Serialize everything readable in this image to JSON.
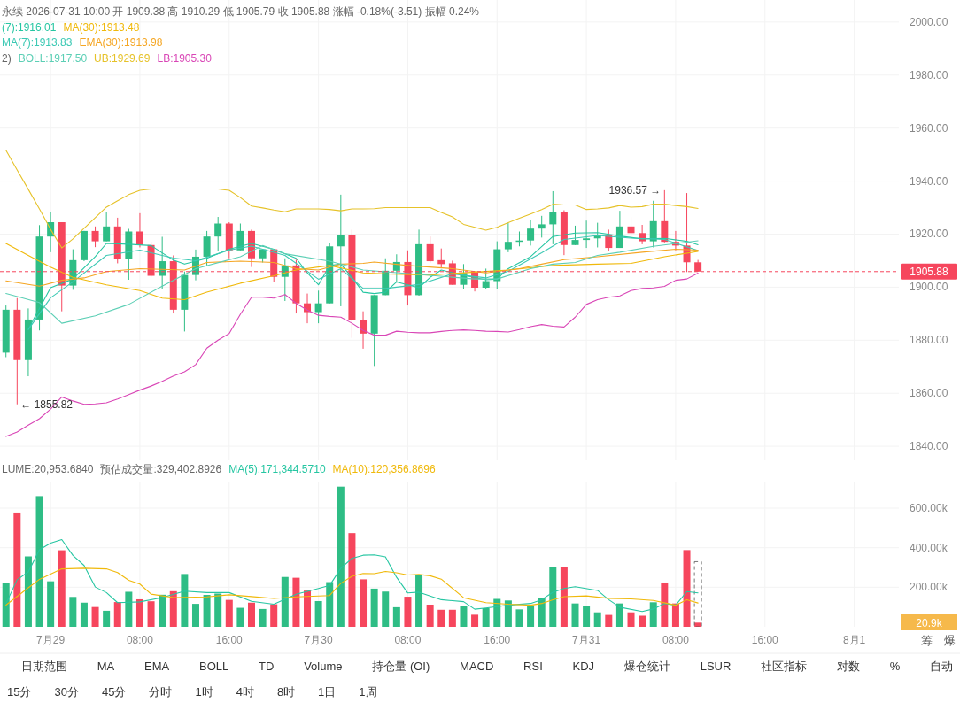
{
  "chart_data": [
    {
      "type": "candlestick",
      "grid": true,
      "legend": "top left",
      "tick_labels": "y",
      "x": [
        "2026-07-28T20:00",
        "2026-07-28T21:00",
        "2026-07-28T22:00",
        "2026-07-28T23:00",
        "2026-07-29T00:00",
        "2026-07-29T01:00",
        "2026-07-29T02:00",
        "2026-07-29T03:00",
        "2026-07-29T04:00",
        "2026-07-29T05:00",
        "2026-07-29T06:00",
        "2026-07-29T07:00",
        "2026-07-29T08:00",
        "2026-07-29T09:00",
        "2026-07-29T10:00",
        "2026-07-29T11:00",
        "2026-07-29T12:00",
        "2026-07-29T13:00",
        "2026-07-29T14:00",
        "2026-07-29T15:00",
        "2026-07-29T16:00",
        "2026-07-29T17:00",
        "2026-07-29T18:00",
        "2026-07-29T19:00",
        "2026-07-29T20:00",
        "2026-07-29T21:00",
        "2026-07-29T22:00",
        "2026-07-29T23:00",
        "2026-07-30T00:00",
        "2026-07-30T01:00",
        "2026-07-30T02:00",
        "2026-07-30T03:00",
        "2026-07-30T04:00",
        "2026-07-30T05:00",
        "2026-07-30T06:00",
        "2026-07-30T07:00",
        "2026-07-30T08:00",
        "2026-07-30T09:00",
        "2026-07-30T10:00",
        "2026-07-30T11:00",
        "2026-07-30T12:00",
        "2026-07-30T13:00",
        "2026-07-30T14:00",
        "2026-07-30T15:00",
        "2026-07-30T16:00",
        "2026-07-30T17:00",
        "2026-07-30T18:00",
        "2026-07-30T19:00",
        "2026-07-30T20:00",
        "2026-07-30T21:00",
        "2026-07-30T22:00",
        "2026-07-30T23:00",
        "2026-07-31T00:00",
        "2026-07-31T01:00",
        "2026-07-31T02:00",
        "2026-07-31T03:00",
        "2026-07-31T04:00",
        "2026-07-31T05:00",
        "2026-07-31T06:00",
        "2026-07-31T07:00",
        "2026-07-31T08:00",
        "2026-07-31T09:00",
        "2026-07-31T10:00"
      ],
      "ohlc": [
        [
          1875.3,
          1893.1,
          1873.6,
          1891.5
        ],
        [
          1891.5,
          1895.9,
          1855.82,
          1872.5
        ],
        [
          1872.5,
          1892.0,
          1866.4,
          1887.8
        ],
        [
          1887.8,
          1923.4,
          1883.7,
          1919.1
        ],
        [
          1919.1,
          1928.2,
          1913.2,
          1924.5
        ],
        [
          1924.5,
          1924.5,
          1890.9,
          1900.6
        ],
        [
          1900.6,
          1914.3,
          1899.0,
          1910.2
        ],
        [
          1910.2,
          1921.2,
          1909.8,
          1921.2
        ],
        [
          1921.2,
          1922.9,
          1915.1,
          1917.3
        ],
        [
          1917.3,
          1928.5,
          1917.3,
          1922.9
        ],
        [
          1922.9,
          1926.2,
          1909.0,
          1910.6
        ],
        [
          1910.6,
          1922.0,
          1902.8,
          1921.0
        ],
        [
          1921.0,
          1927.9,
          1915.0,
          1915.9
        ],
        [
          1915.9,
          1917.1,
          1903.9,
          1904.3
        ],
        [
          1904.3,
          1919.0,
          1899.2,
          1909.8
        ],
        [
          1909.8,
          1912.0,
          1890.1,
          1891.5
        ],
        [
          1891.5,
          1905.9,
          1883.3,
          1904.6
        ],
        [
          1904.6,
          1914.2,
          1902.6,
          1911.5
        ],
        [
          1911.5,
          1921.2,
          1908.2,
          1919.1
        ],
        [
          1919.1,
          1926.5,
          1913.7,
          1924.0
        ],
        [
          1924.0,
          1924.5,
          1910.9,
          1913.9
        ],
        [
          1913.9,
          1924.0,
          1913.9,
          1921.2
        ],
        [
          1921.2,
          1921.7,
          1907.6,
          1910.9
        ],
        [
          1910.9,
          1914.3,
          1909.3,
          1914.3
        ],
        [
          1914.3,
          1914.3,
          1902.0,
          1903.9
        ],
        [
          1903.9,
          1910.9,
          1894.8,
          1908.2
        ],
        [
          1908.2,
          1910.4,
          1890.1,
          1893.9
        ],
        [
          1893.9,
          1897.6,
          1886.4,
          1890.6
        ],
        [
          1890.6,
          1898.7,
          1886.4,
          1893.9
        ],
        [
          1893.9,
          1916.7,
          1893.9,
          1915.4
        ],
        [
          1915.4,
          1934.9,
          1892.8,
          1919.5
        ],
        [
          1919.5,
          1921.7,
          1880.9,
          1887.6
        ],
        [
          1887.6,
          1890.9,
          1876.8,
          1882.5
        ],
        [
          1882.5,
          1897.0,
          1870.3,
          1897.0
        ],
        [
          1897.0,
          1910.9,
          1897.0,
          1906.2
        ],
        [
          1906.2,
          1912.4,
          1902.0,
          1909.5
        ],
        [
          1909.5,
          1913.9,
          1893.1,
          1897.0
        ],
        [
          1897.0,
          1921.7,
          1896.8,
          1916.2
        ],
        [
          1916.2,
          1919.1,
          1909.3,
          1909.8
        ],
        [
          1910.2,
          1914.6,
          1907.1,
          1908.7
        ],
        [
          1909.0,
          1910.0,
          1900.9,
          1900.9
        ],
        [
          1900.9,
          1908.7,
          1899.2,
          1905.4
        ],
        [
          1905.7,
          1905.7,
          1898.4,
          1899.8
        ],
        [
          1899.8,
          1907.0,
          1899.2,
          1902.3
        ],
        [
          1902.3,
          1917.3,
          1899.2,
          1914.3
        ],
        [
          1914.3,
          1924.3,
          1913.2,
          1917.1
        ],
        [
          1917.1,
          1921.0,
          1915.4,
          1917.6
        ],
        [
          1917.6,
          1925.4,
          1915.7,
          1922.1
        ],
        [
          1922.1,
          1926.9,
          1918.7,
          1923.7
        ],
        [
          1923.7,
          1936.2,
          1916.2,
          1928.4
        ],
        [
          1928.4,
          1929.0,
          1912.1,
          1915.9
        ],
        [
          1915.9,
          1923.2,
          1915.9,
          1917.8
        ],
        [
          1917.8,
          1925.1,
          1914.8,
          1918.4
        ],
        [
          1918.4,
          1924.3,
          1915.0,
          1919.8
        ],
        [
          1919.8,
          1921.7,
          1913.7,
          1914.8
        ],
        [
          1914.8,
          1928.8,
          1914.8,
          1922.9
        ],
        [
          1922.9,
          1926.5,
          1918.7,
          1920.4
        ],
        [
          1920.4,
          1923.5,
          1916.2,
          1917.3
        ],
        [
          1917.3,
          1932.6,
          1915.0,
          1924.9
        ],
        [
          1924.9,
          1936.57,
          1916.9,
          1917.1
        ],
        [
          1917.1,
          1921.2,
          1913.9,
          1915.7
        ],
        [
          1915.7,
          1935.5,
          1905.7,
          1909.39
        ],
        [
          1909.38,
          1910.29,
          1905.79,
          1905.88
        ]
      ],
      "colors": [
        "#2ebd85",
        "#f6465d",
        "#2ebd85",
        "#2ebd85",
        "#2ebd85",
        "#f6465d",
        "#2ebd85",
        "#2ebd85",
        "#f6465d",
        "#2ebd85",
        "#f6465d",
        "#2ebd85",
        "#f6465d",
        "#f6465d",
        "#2ebd85",
        "#f6465d",
        "#2ebd85",
        "#2ebd85",
        "#2ebd85",
        "#2ebd85",
        "#f6465d",
        "#2ebd85",
        "#f6465d",
        "#2ebd85",
        "#f6465d",
        "#2ebd85",
        "#f6465d",
        "#f6465d",
        "#2ebd85",
        "#2ebd85",
        "#2ebd85",
        "#f6465d",
        "#f6465d",
        "#2ebd85",
        "#2ebd85",
        "#2ebd85",
        "#f6465d",
        "#2ebd85",
        "#f6465d",
        "#f6465d",
        "#f6465d",
        "#2ebd85",
        "#f6465d",
        "#2ebd85",
        "#2ebd85",
        "#2ebd85",
        "#2ebd85",
        "#2ebd85",
        "#2ebd85",
        "#2ebd85",
        "#f6465d",
        "#2ebd85",
        "#2ebd85",
        "#2ebd85",
        "#f6465d",
        "#2ebd85",
        "#f6465d",
        "#f6465d",
        "#2ebd85",
        "#f6465d",
        "#f6465d",
        "#f6465d",
        "#f6465d"
      ],
      "series": [
        {
          "type": "line",
          "name": "(7):1916.01",
          "color": "#26c6a2",
          "x": [
            "2026-07-28T22:00",
            "2026-07-29T00:00",
            "2026-07-29T02:00",
            "2026-07-29T04:00",
            "2026-07-29T05:00",
            "2026-07-29T07:00",
            "2026-07-29T09:00",
            "2026-07-29T11:00",
            "2026-07-29T12:00",
            "2026-07-29T14:00",
            "2026-07-29T16:00",
            "2026-07-29T18:00",
            "2026-07-29T20:00",
            "2026-07-29T22:00",
            "2026-07-29T23:00",
            "2026-07-30T00:00",
            "2026-07-30T01:00",
            "2026-07-30T02:00",
            "2026-07-30T03:00",
            "2026-07-30T04:00",
            "2026-07-30T05:00",
            "2026-07-30T06:00",
            "2026-07-30T07:00",
            "2026-07-30T08:00",
            "2026-07-30T09:00",
            "2026-07-30T10:00",
            "2026-07-30T11:00",
            "2026-07-30T13:00",
            "2026-07-30T15:00",
            "2026-07-30T16:00",
            "2026-07-30T17:00",
            "2026-07-30T19:00",
            "2026-07-30T21:00",
            "2026-07-30T23:00",
            "2026-07-31T01:00",
            "2026-07-31T03:00",
            "2026-07-31T05:00",
            "2026-07-31T07:00",
            "2026-07-31T09:00",
            "2026-07-31T10:00"
          ],
          "values": [
            1884.2,
            1899.8,
            1903.1,
            1911.5,
            1916.5,
            1916.2,
            1915.7,
            1910.2,
            1908.7,
            1910.9,
            1914.3,
            1916.5,
            1914.3,
            1910.9,
            1905.4,
            1900.9,
            1908.2,
            1908.7,
            1903.7,
            1898.1,
            1897.6,
            1898.1,
            1902.0,
            1900.9,
            1899.8,
            1903.7,
            1906.5,
            1904.5,
            1902.8,
            1903.1,
            1907.0,
            1911.5,
            1919.1,
            1920.4,
            1920.6,
            1919.3,
            1918.2,
            1918.4,
            1917.3,
            1916.01
          ]
        },
        {
          "type": "line",
          "name": "MA(30):1913.48",
          "color": "#f0b90b",
          "x": [
            "2026-07-28T20:00",
            "2026-07-28T22:00",
            "2026-07-29T00:00",
            "2026-07-29T02:00",
            "2026-07-29T05:00",
            "2026-07-29T08:00",
            "2026-07-29T10:00",
            "2026-07-29T12:00",
            "2026-07-29T14:00",
            "2026-07-29T17:00",
            "2026-07-29T20:00",
            "2026-07-29T22:00",
            "2026-07-30T01:00",
            "2026-07-30T04:00",
            "2026-07-30T06:00",
            "2026-07-30T10:00",
            "2026-07-30T14:00",
            "2026-07-30T17:00",
            "2026-07-30T21:00",
            "2026-07-31T01:00",
            "2026-07-31T04:00",
            "2026-07-31T07:00",
            "2026-07-31T10:00"
          ],
          "values": [
            1916.5,
            1912.0,
            1907.6,
            1903.7,
            1900.9,
            1898.7,
            1895.9,
            1895.3,
            1898.1,
            1901.5,
            1904.3,
            1906.5,
            1908.2,
            1905.4,
            1905.0,
            1904.6,
            1905.7,
            1906.5,
            1908.2,
            1908.7,
            1909.0,
            1911.5,
            1913.48
          ]
        },
        {
          "type": "line",
          "name": "MA(7):1913.83",
          "color": "#3cc9b4",
          "x": [
            "2026-07-28T22:00",
            "2026-07-29T00:00",
            "2026-07-29T02:00",
            "2026-07-29T05:00",
            "2026-07-29T08:00",
            "2026-07-29T11:00",
            "2026-07-29T13:00",
            "2026-07-29T16:00",
            "2026-07-29T18:00",
            "2026-07-29T21:00",
            "2026-07-30T00:00",
            "2026-07-30T02:00",
            "2026-07-30T04:00",
            "2026-07-30T06:00",
            "2026-07-30T09:00",
            "2026-07-30T12:00",
            "2026-07-30T15:00",
            "2026-07-30T17:00",
            "2026-07-30T20:00",
            "2026-07-30T22:00",
            "2026-07-31T01:00",
            "2026-07-31T04:00",
            "2026-07-31T07:00",
            "2026-07-31T10:00"
          ],
          "values": [
            1884.0,
            1896.0,
            1902.0,
            1912.0,
            1914.0,
            1911.0,
            1910.0,
            1914.0,
            1915.5,
            1912.0,
            1903.0,
            1907.0,
            1899.5,
            1899.5,
            1901.0,
            1905.0,
            1903.5,
            1906.0,
            1913.0,
            1918.0,
            1919.5,
            1918.5,
            1918.0,
            1913.83
          ]
        },
        {
          "type": "line",
          "name": "EMA(30):1913.98",
          "color": "#f5a623",
          "x": [
            "2026-07-28T20:00",
            "2026-07-28T23:00",
            "2026-07-29T01:00",
            "2026-07-29T03:00",
            "2026-07-29T05:00",
            "2026-07-29T08:00",
            "2026-07-29T12:00",
            "2026-07-29T14:00",
            "2026-07-29T17:00",
            "2026-07-29T20:00",
            "2026-07-29T22:00",
            "2026-07-30T00:00",
            "2026-07-30T02:00",
            "2026-07-30T04:00",
            "2026-07-30T05:00",
            "2026-07-30T08:00",
            "2026-07-30T12:00",
            "2026-07-30T15:00",
            "2026-07-30T18:00",
            "2026-07-30T20:00",
            "2026-07-30T22:00",
            "2026-07-31T01:00",
            "2026-07-31T05:00",
            "2026-07-31T08:00",
            "2026-07-31T10:00"
          ],
          "values": [
            1902.4,
            1900.4,
            1902.6,
            1903.5,
            1905.9,
            1907.0,
            1906.5,
            1909.3,
            1909.8,
            1909.3,
            1907.0,
            1906.5,
            1908.7,
            1909.0,
            1909.5,
            1908.2,
            1907.0,
            1905.4,
            1907.0,
            1908.7,
            1910.4,
            1911.5,
            1913.2,
            1914.3,
            1913.98
          ]
        },
        {
          "type": "line",
          "name": "BOLL:1917.50",
          "color": "#5ccfb5",
          "x": [
            "2026-07-28T20:00",
            "2026-07-28T23:00",
            "2026-07-29T01:00",
            "2026-07-29T04:00",
            "2026-07-29T07:00",
            "2026-07-29T10:00",
            "2026-07-29T13:00",
            "2026-07-29T17:00",
            "2026-07-29T19:00",
            "2026-07-29T21:00",
            "2026-07-30T01:00",
            "2026-07-30T04:00",
            "2026-07-30T09:00",
            "2026-07-30T14:00",
            "2026-07-30T16:00",
            "2026-07-30T19:00",
            "2026-07-30T21:00",
            "2026-07-30T23:00",
            "2026-07-31T01:00",
            "2026-07-31T03:00",
            "2026-07-31T06:00",
            "2026-07-31T10:00"
          ],
          "values": [
            1897.6,
            1894.2,
            1886.4,
            1889.2,
            1893.5,
            1900.4,
            1907.0,
            1911.5,
            1915.7,
            1912.6,
            1909.8,
            1906.5,
            1904.8,
            1903.1,
            1903.1,
            1907.0,
            1908.7,
            1909.3,
            1912.0,
            1913.2,
            1915.4,
            1917.5
          ]
        },
        {
          "type": "line",
          "name": "UB:1929.69",
          "color": "#e6c229",
          "values": [
            1951.6,
            1944.2,
            1936.9,
            1929.5,
            1921.8,
            1914.8,
            1918.2,
            1922.2,
            1926.2,
            1930.2,
            1932.6,
            1934.9,
            1936.5,
            1937.0,
            1937.0,
            1937.0,
            1937.0,
            1937.0,
            1937.0,
            1937.0,
            1936.5,
            1933.8,
            1930.6,
            1929.9,
            1929.1,
            1928.4,
            1929.5,
            1929.5,
            1929.5,
            1929.3,
            1928.8,
            1929.5,
            1929.5,
            1929.6,
            1930.0,
            1930.0,
            1930.0,
            1930.0,
            1930.0,
            1928.2,
            1926.5,
            1923.7,
            1922.6,
            1921.5,
            1922.6,
            1924.3,
            1926.0,
            1927.6,
            1929.3,
            1931.3,
            1931.0,
            1931.0,
            1929.3,
            1929.5,
            1929.9,
            1930.8,
            1930.2,
            1930.4,
            1931.3,
            1931.3,
            1930.8,
            1930.4,
            1929.69
          ]
        },
        {
          "type": "line",
          "name": "LB:1905.30",
          "color": "#d946b6",
          "values": [
            1843.7,
            1845.4,
            1848.0,
            1850.4,
            1854.0,
            1858.6,
            1857.1,
            1855.8,
            1856.0,
            1856.4,
            1857.8,
            1859.5,
            1861.2,
            1862.7,
            1864.5,
            1866.5,
            1868.1,
            1870.8,
            1877.0,
            1880.0,
            1882.5,
            1889.8,
            1896.2,
            1896.2,
            1895.9,
            1897.2,
            1893.9,
            1891.4,
            1889.4,
            1889.0,
            1888.7,
            1886.4,
            1883.7,
            1881.9,
            1881.9,
            1883.4,
            1883.0,
            1882.8,
            1882.8,
            1883.3,
            1883.7,
            1883.9,
            1883.7,
            1883.4,
            1883.3,
            1883.1,
            1884.0,
            1885.1,
            1885.9,
            1885.3,
            1885.0,
            1888.7,
            1893.5,
            1895.3,
            1896.2,
            1896.7,
            1898.7,
            1899.5,
            1899.7,
            1900.3,
            1902.6,
            1903.1,
            1905.3
          ]
        }
      ],
      "xlim": [
        "2026-07-28T19:28",
        "2026-08-01T04:00"
      ],
      "xticks": [
        {
          "value": "2026-07-29",
          "label": null
        },
        {
          "value": "2026-07-29T08:00",
          "label": null
        },
        {
          "value": "2026-07-29T16:00",
          "label": null
        },
        {
          "value": "2026-07-30",
          "label": null
        },
        {
          "value": "2026-07-30T08:00",
          "label": null
        },
        {
          "value": "2026-07-30T16:00",
          "label": null
        },
        {
          "value": "2026-07-31",
          "label": null
        },
        {
          "value": "2026-07-31T08:00",
          "label": null
        },
        {
          "value": "2026-07-31T16:00",
          "label": null
        },
        {
          "value": "2026-08-01",
          "label": null
        }
      ],
      "ylim": [
        1834.7,
        2008.3
      ],
      "yticks": [
        {
          "value": 1840,
          "label": "1840.00"
        },
        {
          "value": 1860,
          "label": "1860.00"
        },
        {
          "value": 1880,
          "label": "1880.00"
        },
        {
          "value": 1900,
          "label": "1900.00"
        },
        {
          "value": 1920,
          "label": "1920.00"
        },
        {
          "value": 1940,
          "label": "1940.00"
        },
        {
          "value": 1960,
          "label": "1960.00"
        },
        {
          "value": 1980,
          "label": "1980.00"
        },
        {
          "value": 2000,
          "label": "2000.00"
        }
      ],
      "ref_lines": [
        {
          "axis": "y",
          "value": 1905.88,
          "label": "1905.88",
          "color": "#f6465d",
          "line_style": "dashed"
        }
      ],
      "annotations": [
        "永续 2026-07-31 10:00 开 1909.38 高 1910.29 低 1905.79 收 1905.88 涨幅 -0.18%(-3.51) 振幅 0.24%",
        "2)",
        {
          "text": "1936.57 →",
          "x": "2026-07-31T07:00",
          "y": 1936.57
        },
        {
          "text": "← 1855.82",
          "x": "2026-07-28T21:00",
          "y": 1855.82
        }
      ]
    },
    {
      "type": "bar",
      "grid": true,
      "legend": "top left",
      "x": [
        "2026-07-28T20:00",
        "2026-07-28T21:00",
        "2026-07-28T22:00",
        "2026-07-28T23:00",
        "2026-07-29T00:00",
        "2026-07-29T01:00",
        "2026-07-29T02:00",
        "2026-07-29T03:00",
        "2026-07-29T04:00",
        "2026-07-29T05:00",
        "2026-07-29T06:00",
        "2026-07-29T07:00",
        "2026-07-29T08:00",
        "2026-07-29T09:00",
        "2026-07-29T10:00",
        "2026-07-29T11:00",
        "2026-07-29T12:00",
        "2026-07-29T13:00",
        "2026-07-29T14:00",
        "2026-07-29T15:00",
        "2026-07-29T16:00",
        "2026-07-29T17:00",
        "2026-07-29T18:00",
        "2026-07-29T19:00",
        "2026-07-29T20:00",
        "2026-07-29T21:00",
        "2026-07-29T22:00",
        "2026-07-29T23:00",
        "2026-07-30T00:00",
        "2026-07-30T01:00",
        "2026-07-30T02:00",
        "2026-07-30T03:00",
        "2026-07-30T04:00",
        "2026-07-30T05:00",
        "2026-07-30T06:00",
        "2026-07-30T07:00",
        "2026-07-30T08:00",
        "2026-07-30T09:00",
        "2026-07-30T10:00",
        "2026-07-30T11:00",
        "2026-07-30T12:00",
        "2026-07-30T13:00",
        "2026-07-30T14:00",
        "2026-07-30T15:00",
        "2026-07-30T16:00",
        "2026-07-30T17:00",
        "2026-07-30T18:00",
        "2026-07-30T19:00",
        "2026-07-30T20:00",
        "2026-07-30T21:00",
        "2026-07-30T22:00",
        "2026-07-30T23:00",
        "2026-07-31T00:00",
        "2026-07-31T01:00",
        "2026-07-31T02:00",
        "2026-07-31T03:00",
        "2026-07-31T04:00",
        "2026-07-31T05:00",
        "2026-07-31T06:00",
        "2026-07-31T07:00",
        "2026-07-31T08:00",
        "2026-07-31T09:00",
        "2026-07-31T10:00"
      ],
      "series": [
        {
          "type": "bar",
          "values": [
            223000,
            578000,
            356000,
            661000,
            230000,
            387000,
            151000,
            122000,
            100000,
            81000,
            125000,
            177000,
            139000,
            129000,
            162000,
            180000,
            267000,
            116000,
            161000,
            168000,
            136000,
            96000,
            122000,
            90000,
            114000,
            252000,
            248000,
            183000,
            130000,
            226000,
            709000,
            474000,
            240000,
            193000,
            178000,
            99000,
            152000,
            260000,
            112000,
            86000,
            86000,
            106000,
            61000,
            94000,
            141000,
            133000,
            88000,
            109000,
            147000,
            303000,
            303000,
            118000,
            106000,
            73000,
            60000,
            118000,
            73000,
            56000,
            124000,
            224000,
            118000,
            388000,
            20953.684
          ],
          "colors": [
            "#2ebd85",
            "#f6465d",
            "#2ebd85",
            "#2ebd85",
            "#2ebd85",
            "#f6465d",
            "#2ebd85",
            "#2ebd85",
            "#f6465d",
            "#2ebd85",
            "#f6465d",
            "#2ebd85",
            "#f6465d",
            "#f6465d",
            "#2ebd85",
            "#f6465d",
            "#2ebd85",
            "#2ebd85",
            "#2ebd85",
            "#2ebd85",
            "#f6465d",
            "#2ebd85",
            "#f6465d",
            "#2ebd85",
            "#f6465d",
            "#2ebd85",
            "#f6465d",
            "#f6465d",
            "#2ebd85",
            "#2ebd85",
            "#2ebd85",
            "#f6465d",
            "#f6465d",
            "#2ebd85",
            "#2ebd85",
            "#2ebd85",
            "#f6465d",
            "#2ebd85",
            "#f6465d",
            "#f6465d",
            "#f6465d",
            "#2ebd85",
            "#f6465d",
            "#2ebd85",
            "#2ebd85",
            "#2ebd85",
            "#2ebd85",
            "#2ebd85",
            "#2ebd85",
            "#2ebd85",
            "#f6465d",
            "#2ebd85",
            "#2ebd85",
            "#2ebd85",
            "#f6465d",
            "#2ebd85",
            "#f6465d",
            "#f6465d",
            "#2ebd85",
            "#f6465d",
            "#f6465d",
            "#f6465d",
            "#f6465d"
          ]
        },
        {
          "type": "bar",
          "color": "#555555",
          "line_style": "dashed",
          "values": [
            null,
            null,
            null,
            null,
            null,
            null,
            null,
            null,
            null,
            null,
            null,
            null,
            null,
            null,
            null,
            null,
            null,
            null,
            null,
            null,
            null,
            null,
            null,
            null,
            null,
            null,
            null,
            null,
            null,
            null,
            null,
            null,
            null,
            null,
            null,
            null,
            null,
            null,
            null,
            null,
            null,
            null,
            null,
            null,
            null,
            null,
            null,
            null,
            null,
            null,
            null,
            null,
            null,
            null,
            null,
            null,
            null,
            null,
            null,
            null,
            null,
            null,
            329402.8926
          ]
        },
        {
          "type": "line",
          "name": "MA(5):171,344.5710",
          "color": "#26c6a2",
          "x": [
            "2026-07-28T20:00",
            "2026-07-28T21:00",
            "2026-07-28T22:00",
            "2026-07-28T23:00",
            "2026-07-29T00:00",
            "2026-07-29T01:00",
            "2026-07-29T02:00",
            "2026-07-29T03:00",
            "2026-07-29T04:00",
            "2026-07-29T05:00",
            "2026-07-29T06:00",
            "2026-07-29T08:00",
            "2026-07-29T10:00",
            "2026-07-29T12:00",
            "2026-07-29T14:00",
            "2026-07-29T16:00",
            "2026-07-29T18:00",
            "2026-07-29T20:00",
            "2026-07-29T22:00",
            "2026-07-30T00:00",
            "2026-07-30T01:00",
            "2026-07-30T02:00",
            "2026-07-30T03:00",
            "2026-07-30T04:00",
            "2026-07-30T05:00",
            "2026-07-30T06:00",
            "2026-07-30T07:00",
            "2026-07-30T08:00",
            "2026-07-30T09:00",
            "2026-07-30T11:00",
            "2026-07-30T13:00",
            "2026-07-30T14:00",
            "2026-07-30T15:00",
            "2026-07-30T17:00",
            "2026-07-30T19:00",
            "2026-07-30T20:00",
            "2026-07-30T21:00",
            "2026-07-30T22:00",
            "2026-07-30T23:00",
            "2026-07-31T01:00",
            "2026-07-31T02:00",
            "2026-07-31T03:00",
            "2026-07-31T05:00",
            "2026-07-31T06:00",
            "2026-07-31T07:00",
            "2026-07-31T08:00",
            "2026-07-31T09:00",
            "2026-07-31T10:00"
          ],
          "values": [
            117000,
            238000,
            278000,
            390000,
            423000,
            441000,
            361000,
            310000,
            201000,
            173000,
            122000,
            126000,
            148000,
            180000,
            173000,
            173000,
            129000,
            114000,
            165000,
            194000,
            209000,
            296000,
            346000,
            362000,
            364000,
            354000,
            250000,
            171000,
            175000,
            137000,
            127000,
            89000,
            95000,
            109000,
            118000,
            137000,
            175000,
            194000,
            203000,
            184000,
            137000,
            99000,
            77000,
            90000,
            118000,
            109000,
            178000,
            171344.571
          ]
        },
        {
          "type": "line",
          "name": "MA(10):120,356.8696",
          "color": "#f0b90b",
          "x": [
            "2026-07-28T20:00",
            "2026-07-28T22:00",
            "2026-07-28T23:00",
            "2026-07-29T01:00",
            "2026-07-29T03:00",
            "2026-07-29T05:00",
            "2026-07-29T06:00",
            "2026-07-29T07:00",
            "2026-07-29T08:00",
            "2026-07-29T09:00",
            "2026-07-29T11:00",
            "2026-07-29T14:00",
            "2026-07-29T16:00",
            "2026-07-29T18:00",
            "2026-07-29T20:00",
            "2026-07-29T22:00",
            "2026-07-30T01:00",
            "2026-07-30T02:00",
            "2026-07-30T03:00",
            "2026-07-30T04:00",
            "2026-07-30T05:00",
            "2026-07-30T06:00",
            "2026-07-30T07:00",
            "2026-07-30T08:00",
            "2026-07-30T09:00",
            "2026-07-30T10:00",
            "2026-07-30T11:00",
            "2026-07-30T13:00",
            "2026-07-30T15:00",
            "2026-07-30T17:00",
            "2026-07-30T19:00",
            "2026-07-30T20:00",
            "2026-07-30T21:00",
            "2026-07-30T22:00",
            "2026-07-31T00:00",
            "2026-07-31T02:00",
            "2026-07-31T04:00",
            "2026-07-31T06:00",
            "2026-07-31T08:00",
            "2026-07-31T09:00",
            "2026-07-31T10:00"
          ],
          "values": [
            110000,
            197000,
            240000,
            293000,
            296000,
            293000,
            274000,
            235000,
            216000,
            165000,
            148000,
            151000,
            162000,
            153000,
            143000,
            151000,
            158000,
            220000,
            255000,
            270000,
            269000,
            280000,
            273000,
            262000,
            265000,
            258000,
            241000,
            147000,
            122000,
            114000,
            109000,
            118000,
            137000,
            152000,
            156000,
            144000,
            141000,
            133000,
            109000,
            137000,
            120356.8696
          ]
        }
      ],
      "xlim": [
        "2026-07-28T19:28",
        "2026-08-01T04:00"
      ],
      "xticks": [
        {
          "value": "2026-07-29",
          "label": "7月29"
        },
        {
          "value": "2026-07-29T08:00",
          "label": "08:00"
        },
        {
          "value": "2026-07-29T16:00",
          "label": "16:00"
        },
        {
          "value": "2026-07-30",
          "label": "7月30"
        },
        {
          "value": "2026-07-30T08:00",
          "label": "08:00"
        },
        {
          "value": "2026-07-30T16:00",
          "label": "16:00"
        },
        {
          "value": "2026-07-31",
          "label": "7月31"
        },
        {
          "value": "2026-07-31T08:00",
          "label": "08:00"
        },
        {
          "value": "2026-07-31T16:00",
          "label": "16:00"
        },
        {
          "value": "2026-08-01",
          "label": "8月1"
        }
      ],
      "ylim": [
        0,
        730000
      ],
      "yticks": [
        {
          "value": 200000,
          "label": "200.00k"
        },
        {
          "value": 400000,
          "label": "400.00k"
        },
        {
          "value": 600000,
          "label": "600.00k"
        }
      ],
      "annotations": [
        "LUME:20,953.6840",
        "预估成交量:329,402.8926",
        "筹",
        "爆",
        "20.9k"
      ]
    },
    {
      "type": "other",
      "annotations": [
        "日期范围",
        "MA",
        "EMA",
        "BOLL",
        "TD",
        "Volume",
        "持仓量 (OI)",
        "MACD",
        "RSI",
        "KDJ",
        "爆仓统计",
        "LSUR",
        "社区指标",
        "对数",
        "%",
        "自动",
        "15分",
        "30分",
        "45分",
        "分时",
        "1时",
        "4时",
        "8时",
        "1日",
        "1周"
      ]
    }
  ]
}
